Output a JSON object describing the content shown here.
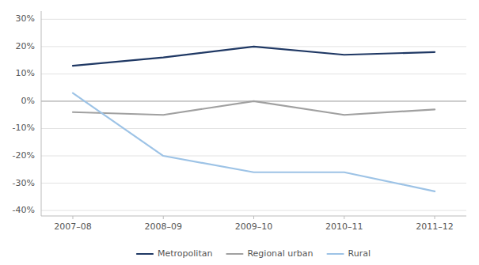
{
  "chart_data": {
    "type": "line",
    "categories": [
      "2007–08",
      "2008–09",
      "2009–10",
      "2010–11",
      "2011–12"
    ],
    "series": [
      {
        "name": "Metropolitan",
        "color": "#1F3864",
        "values": [
          0.13,
          0.16,
          0.2,
          0.17,
          0.18
        ]
      },
      {
        "name": "Regional urban",
        "color": "#A0A0A0",
        "values": [
          -0.04,
          -0.05,
          0.0,
          -0.05,
          -0.03
        ]
      },
      {
        "name": "Rural",
        "color": "#9DC3E6",
        "values": [
          0.03,
          -0.2,
          -0.26,
          -0.26,
          -0.33
        ]
      }
    ],
    "ylim": [
      -0.42,
      0.33
    ],
    "yticks": [
      {
        "value": -0.4,
        "label": "-40%"
      },
      {
        "value": -0.3,
        "label": "-30%"
      },
      {
        "value": -0.2,
        "label": "-20%"
      },
      {
        "value": -0.1,
        "label": "-10%"
      },
      {
        "value": 0.0,
        "label": "0%"
      },
      {
        "value": 0.1,
        "label": "10%"
      },
      {
        "value": 0.2,
        "label": "20%"
      },
      {
        "value": 0.3,
        "label": "30%"
      }
    ],
    "grid": true,
    "legend": "bottom"
  }
}
